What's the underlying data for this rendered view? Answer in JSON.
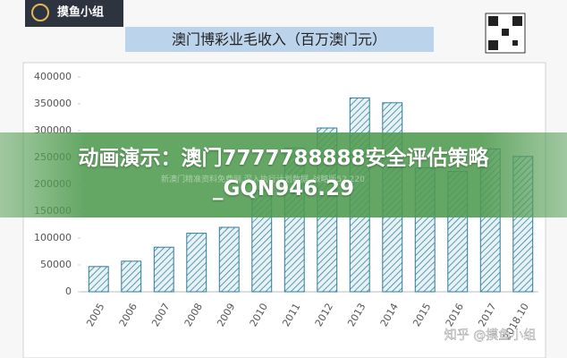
{
  "logo": "摸鱼小组",
  "watermark": "知乎 @摸鱼小组",
  "overlay": {
    "headline": "动画演示：澳门7777788888安全评估策略_GQN946.29",
    "subtext": "新澳门精准资料免费网,深入执行计划数据_战略版52.220"
  },
  "chart_data": {
    "type": "bar",
    "title": "澳门博彩业毛收入（百万澳门元）",
    "categories": [
      "2005",
      "2006",
      "2007",
      "2008",
      "2009",
      "2010",
      "2011",
      "2012",
      "2013",
      "2014",
      "2015",
      "2016",
      "2017",
      "2018.10"
    ],
    "values": [
      47000,
      57000,
      83000,
      109000,
      120000,
      189000,
      268000,
      305000,
      361000,
      352000,
      231000,
      224000,
      266000,
      252000
    ],
    "color": "#2f7c98",
    "ylim": [
      0,
      400000
    ],
    "yticks": [
      0,
      50000,
      100000,
      150000,
      200000,
      250000,
      300000,
      350000,
      400000
    ]
  }
}
